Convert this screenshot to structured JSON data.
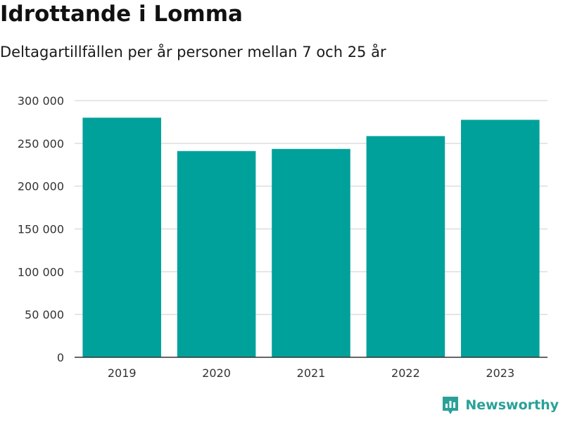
{
  "title": "Idrottande i Lomma",
  "subtitle": "Deltagartillfällen per år personer mellan 7 och 25 år",
  "brand": {
    "name": "Newsworthy",
    "icon": "newsworthy-logo-icon",
    "color": "#2aa198"
  },
  "colors": {
    "bar": "#00a19a",
    "grid": "#dddddd",
    "axis": "#333333"
  },
  "chart_data": {
    "type": "bar",
    "categories": [
      "2019",
      "2020",
      "2021",
      "2022",
      "2023"
    ],
    "values": [
      280000,
      241000,
      243500,
      258500,
      277500
    ],
    "ylim": [
      0,
      300000
    ],
    "yticks": [
      0,
      50000,
      100000,
      150000,
      200000,
      250000,
      300000
    ],
    "ytick_labels": [
      "0",
      "50 000",
      "100 000",
      "150 000",
      "200 000",
      "250 000",
      "300 000"
    ],
    "grid": true,
    "legend": "none"
  }
}
